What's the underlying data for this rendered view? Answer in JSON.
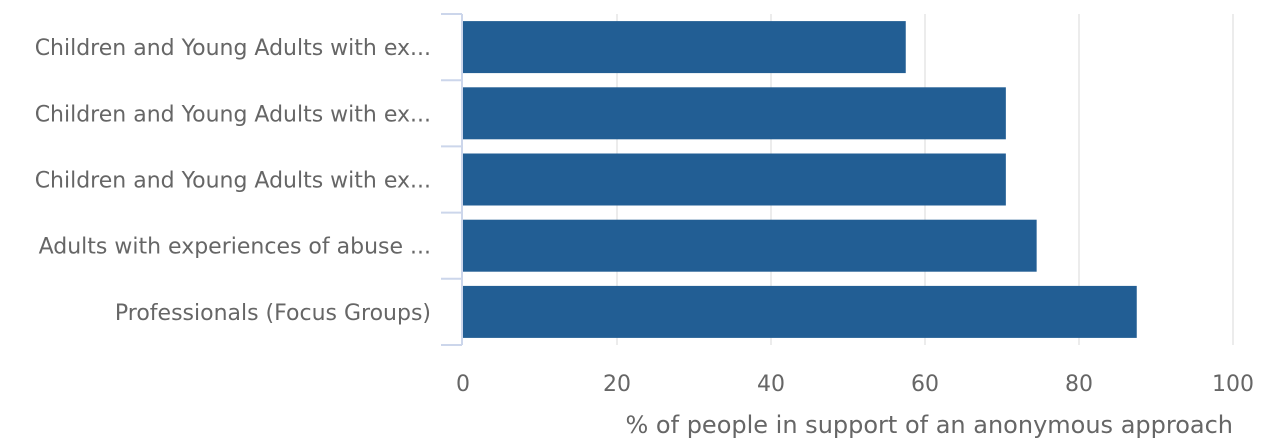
{
  "chart_data": {
    "type": "bar",
    "orientation": "horizontal",
    "categories": [
      "Children and Young Adults with ex...",
      "Children and Young Adults with ex...",
      "Children and Young Adults with ex...",
      "Adults with experiences of abuse ...",
      "Professionals (Focus Groups)"
    ],
    "values": [
      57.5,
      70.5,
      70.5,
      74.5,
      87.5
    ],
    "xlabel": "% of people in support of an anonymous approach",
    "ylabel": "",
    "xlim": [
      0,
      100
    ],
    "xticks": [
      "0",
      "20",
      "40",
      "60",
      "80",
      "100"
    ],
    "grid": true,
    "legend": "none",
    "bar_color": "#225e94"
  }
}
